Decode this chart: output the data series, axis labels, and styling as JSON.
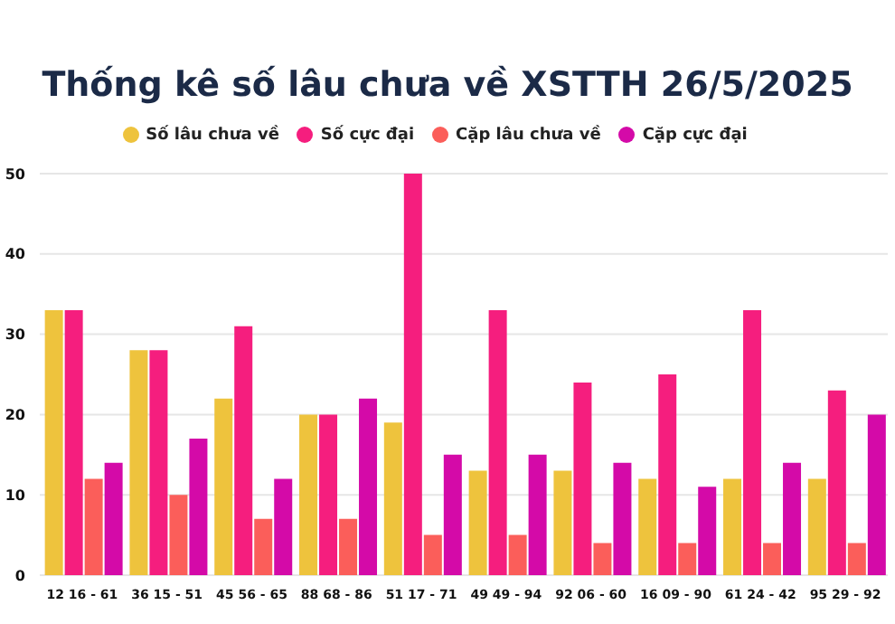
{
  "chart_data": {
    "type": "bar",
    "title": "Thống kê số lâu chưa về XSTTH 26/5/2025",
    "categories": [
      "12 16 - 61",
      "36 15 - 51",
      "45 56 - 65",
      "88 68 - 86",
      "51 17 - 71",
      "49 49 - 94",
      "92 06 - 60",
      "16 09 - 90",
      "61 24 - 42",
      "95 29 - 92"
    ],
    "series": [
      {
        "name": "Số lâu chưa về",
        "color": "#eec33d",
        "values": [
          33,
          28,
          22,
          20,
          19,
          13,
          13,
          12,
          12,
          12
        ]
      },
      {
        "name": "Số cực đại",
        "color": "#f51e7e",
        "values": [
          33,
          28,
          31,
          20,
          50,
          33,
          24,
          25,
          33,
          23
        ]
      },
      {
        "name": "Cặp lâu chưa về",
        "color": "#fb5e5a",
        "values": [
          12,
          10,
          7,
          7,
          5,
          5,
          4,
          4,
          4,
          4
        ]
      },
      {
        "name": "Cặp cực đại",
        "color": "#d40aa8",
        "values": [
          14,
          17,
          12,
          22,
          15,
          15,
          14,
          11,
          14,
          20
        ]
      }
    ],
    "ylim": [
      0,
      50
    ],
    "yticks": [
      0,
      10,
      20,
      30,
      40,
      50
    ],
    "grid": "y",
    "legend": "top"
  }
}
